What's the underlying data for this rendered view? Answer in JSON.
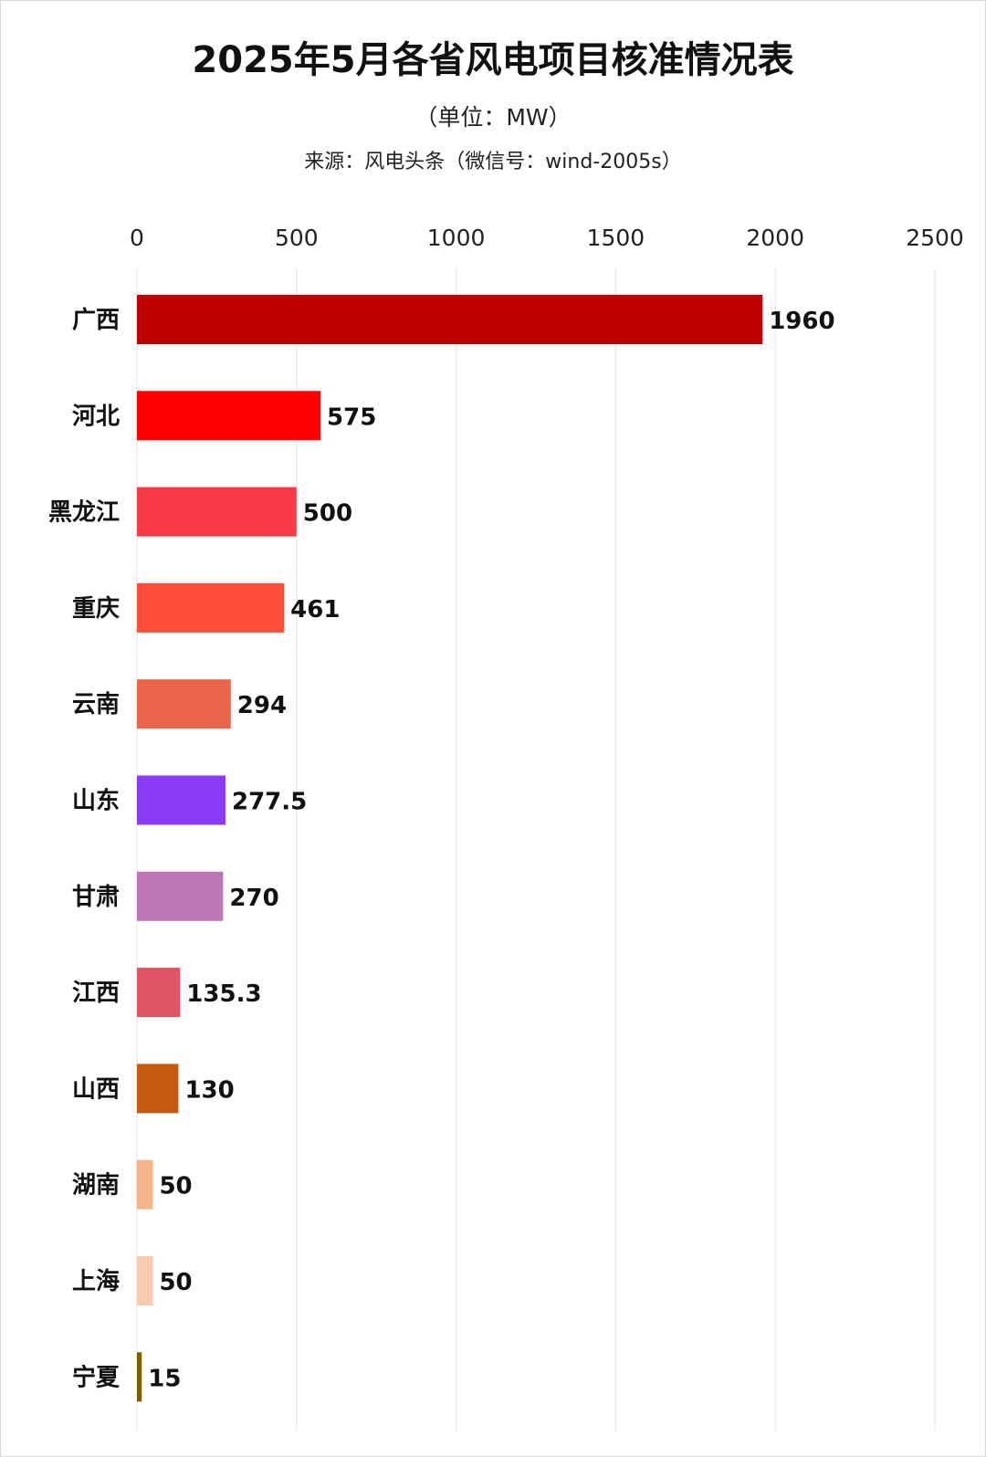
{
  "chart_data": {
    "type": "bar",
    "orientation": "horizontal",
    "title": "2025年5月各省风电项目核准情况表",
    "subtitle": "（单位：MW）",
    "source": "来源：风电头条（微信号：wind-2005s）",
    "xlim": [
      0,
      2500
    ],
    "xticks": [
      0,
      500,
      1000,
      1500,
      2000,
      2500
    ],
    "xaxis_position": "top",
    "grid": "vertical",
    "categories": [
      "广西",
      "河北",
      "黑龙江",
      "重庆",
      "云南",
      "山东",
      "甘肃",
      "江西",
      "山西",
      "湖南",
      "上海",
      "宁夏"
    ],
    "values": [
      1960,
      575,
      500,
      461,
      294,
      277.5,
      270,
      135.3,
      130,
      50,
      50,
      15
    ],
    "value_labels": [
      "1960",
      "575",
      "500",
      "461",
      "294",
      "277.5",
      "270",
      "135.3",
      "130",
      "50",
      "50",
      "15"
    ],
    "colors": [
      "#C00000",
      "#FF0000",
      "#F73A46",
      "#FF4F3A",
      "#EB654A",
      "#8A3CF5",
      "#BE77B4",
      "#E05563",
      "#C45A12",
      "#F6B48A",
      "#F8CBB0",
      "#7F6000"
    ]
  }
}
